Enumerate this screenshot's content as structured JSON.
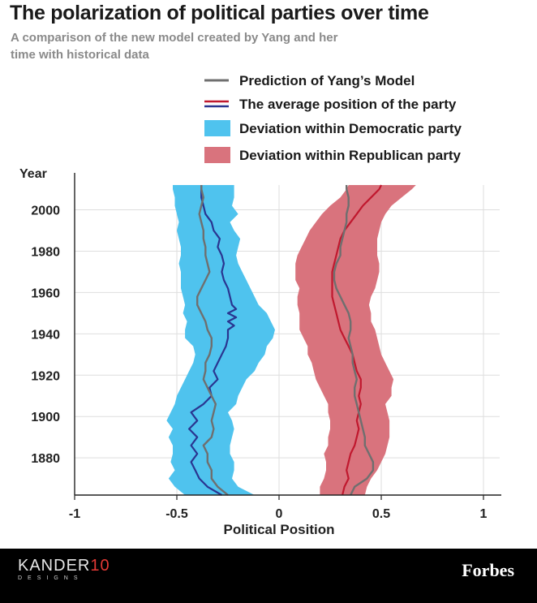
{
  "title": "The polarization of political parties over time",
  "subtitle": "A comparison of the new model created by Yang and her time with historical data",
  "footer": {
    "brand_left_name": "KANDER",
    "brand_left_num": "10",
    "brand_left_sub": "DESIGNS",
    "brand_right": "Forbes"
  },
  "colors": {
    "dem_band": "#4fc3ee",
    "rep_band": "#d9737d",
    "dem_line": "#2a3590",
    "rep_line": "#c0182e",
    "model_line": "#6f6f6f",
    "grid": "#dedede"
  },
  "chart_data": {
    "type": "area",
    "title": "The polarization of political parties over time",
    "xlabel": "Political Position",
    "ylabel": "Year",
    "xlim": [
      -1,
      1
    ],
    "ylim": [
      1862,
      2012
    ],
    "xticks": [
      "-1",
      "-0.5",
      "0",
      "0.5",
      "1"
    ],
    "xtick_values": [
      -1,
      -0.5,
      0,
      0.5,
      1
    ],
    "yticks": [
      "1880",
      "1900",
      "1920",
      "1940",
      "1960",
      "1980",
      "2000"
    ],
    "ytick_values": [
      1880,
      1900,
      1920,
      1940,
      1960,
      1980,
      2000
    ],
    "grid": true,
    "legend_position": "top-right",
    "legend": [
      {
        "label": "Prediction of Yang’s Model",
        "kind": "line-gray"
      },
      {
        "label": "The average position of the party",
        "kind": "line-pair"
      },
      {
        "label": "Deviation within Democratic party",
        "kind": "swatch-dem"
      },
      {
        "label": "Deviation within Republican party",
        "kind": "swatch-rep"
      }
    ],
    "series": [
      {
        "name": "Deviation within Democratic party",
        "type": "band",
        "year": [
          1862,
          1866,
          1870,
          1874,
          1878,
          1882,
          1886,
          1890,
          1894,
          1898,
          1902,
          1906,
          1910,
          1914,
          1918,
          1922,
          1926,
          1930,
          1934,
          1938,
          1942,
          1946,
          1950,
          1954,
          1958,
          1962,
          1966,
          1970,
          1974,
          1978,
          1982,
          1986,
          1990,
          1994,
          1998,
          2002,
          2006,
          2010,
          2012
        ],
        "low": [
          -0.46,
          -0.51,
          -0.54,
          -0.51,
          -0.53,
          -0.52,
          -0.52,
          -0.54,
          -0.52,
          -0.55,
          -0.53,
          -0.51,
          -0.5,
          -0.48,
          -0.46,
          -0.44,
          -0.42,
          -0.41,
          -0.42,
          -0.46,
          -0.46,
          -0.45,
          -0.47,
          -0.46,
          -0.47,
          -0.48,
          -0.48,
          -0.48,
          -0.49,
          -0.48,
          -0.48,
          -0.49,
          -0.5,
          -0.49,
          -0.5,
          -0.51,
          -0.51,
          -0.52,
          -0.52
        ],
        "high": [
          -0.12,
          -0.2,
          -0.23,
          -0.22,
          -0.22,
          -0.24,
          -0.24,
          -0.23,
          -0.22,
          -0.23,
          -0.25,
          -0.21,
          -0.2,
          -0.18,
          -0.16,
          -0.12,
          -0.1,
          -0.07,
          -0.06,
          -0.03,
          -0.02,
          -0.04,
          -0.06,
          -0.1,
          -0.12,
          -0.14,
          -0.16,
          -0.18,
          -0.2,
          -0.21,
          -0.2,
          -0.19,
          -0.22,
          -0.24,
          -0.2,
          -0.23,
          -0.22,
          -0.22,
          -0.22
        ]
      },
      {
        "name": "Deviation within Republican party",
        "type": "band",
        "year": [
          1862,
          1866,
          1870,
          1874,
          1878,
          1882,
          1886,
          1890,
          1894,
          1898,
          1902,
          1906,
          1910,
          1914,
          1918,
          1922,
          1926,
          1930,
          1934,
          1938,
          1942,
          1946,
          1950,
          1954,
          1958,
          1962,
          1966,
          1970,
          1974,
          1978,
          1982,
          1986,
          1990,
          1994,
          1998,
          2002,
          2006,
          2010,
          2012
        ],
        "low": [
          0.2,
          0.2,
          0.22,
          0.23,
          0.23,
          0.22,
          0.24,
          0.24,
          0.25,
          0.25,
          0.24,
          0.24,
          0.22,
          0.2,
          0.18,
          0.17,
          0.16,
          0.14,
          0.14,
          0.12,
          0.1,
          0.1,
          0.1,
          0.09,
          0.09,
          0.1,
          0.08,
          0.08,
          0.08,
          0.09,
          0.11,
          0.13,
          0.15,
          0.18,
          0.21,
          0.25,
          0.3,
          0.33,
          0.34
        ],
        "high": [
          0.42,
          0.43,
          0.45,
          0.48,
          0.5,
          0.52,
          0.53,
          0.54,
          0.54,
          0.54,
          0.53,
          0.52,
          0.55,
          0.55,
          0.56,
          0.54,
          0.52,
          0.5,
          0.49,
          0.48,
          0.47,
          0.45,
          0.45,
          0.44,
          0.45,
          0.47,
          0.48,
          0.49,
          0.49,
          0.48,
          0.48,
          0.48,
          0.49,
          0.5,
          0.52,
          0.55,
          0.6,
          0.65,
          0.67
        ]
      },
      {
        "name": "Democratic average position",
        "type": "line",
        "year": [
          1862,
          1866,
          1870,
          1874,
          1878,
          1882,
          1886,
          1890,
          1894,
          1898,
          1902,
          1906,
          1910,
          1914,
          1918,
          1922,
          1926,
          1930,
          1934,
          1938,
          1942,
          1944,
          1946,
          1948,
          1950,
          1952,
          1954,
          1958,
          1962,
          1966,
          1970,
          1974,
          1978,
          1982,
          1986,
          1990,
          1994,
          1998,
          2002,
          2006,
          2010,
          2012
        ],
        "x": [
          -0.28,
          -0.35,
          -0.39,
          -0.41,
          -0.43,
          -0.4,
          -0.43,
          -0.4,
          -0.44,
          -0.4,
          -0.43,
          -0.37,
          -0.33,
          -0.34,
          -0.3,
          -0.32,
          -0.3,
          -0.28,
          -0.26,
          -0.25,
          -0.25,
          -0.22,
          -0.25,
          -0.21,
          -0.25,
          -0.21,
          -0.23,
          -0.24,
          -0.25,
          -0.27,
          -0.28,
          -0.27,
          -0.28,
          -0.3,
          -0.29,
          -0.32,
          -0.33,
          -0.36,
          -0.37,
          -0.38,
          -0.38,
          -0.38
        ]
      },
      {
        "name": "Republican average position",
        "type": "line",
        "year": [
          1862,
          1866,
          1870,
          1874,
          1878,
          1882,
          1886,
          1890,
          1894,
          1898,
          1902,
          1906,
          1910,
          1914,
          1918,
          1922,
          1926,
          1930,
          1934,
          1938,
          1942,
          1946,
          1950,
          1954,
          1958,
          1962,
          1966,
          1970,
          1974,
          1978,
          1982,
          1986,
          1990,
          1994,
          1998,
          2002,
          2006,
          2010,
          2012
        ],
        "x": [
          0.31,
          0.32,
          0.34,
          0.33,
          0.34,
          0.35,
          0.37,
          0.38,
          0.39,
          0.38,
          0.39,
          0.4,
          0.39,
          0.4,
          0.4,
          0.38,
          0.37,
          0.36,
          0.34,
          0.32,
          0.3,
          0.29,
          0.28,
          0.27,
          0.26,
          0.26,
          0.26,
          0.26,
          0.27,
          0.28,
          0.29,
          0.3,
          0.32,
          0.35,
          0.38,
          0.41,
          0.45,
          0.49,
          0.5
        ]
      },
      {
        "name": "Prediction of Yang’s Model (Democratic)",
        "type": "line",
        "year": [
          1862,
          1866,
          1870,
          1874,
          1878,
          1882,
          1886,
          1890,
          1894,
          1898,
          1902,
          1906,
          1910,
          1914,
          1918,
          1922,
          1926,
          1930,
          1934,
          1938,
          1942,
          1946,
          1950,
          1954,
          1958,
          1962,
          1966,
          1970,
          1974,
          1978,
          1982,
          1986,
          1990,
          1994,
          1998,
          2002,
          2006,
          2010,
          2012
        ],
        "x": [
          -0.25,
          -0.3,
          -0.33,
          -0.33,
          -0.35,
          -0.35,
          -0.37,
          -0.33,
          -0.32,
          -0.33,
          -0.32,
          -0.31,
          -0.33,
          -0.35,
          -0.37,
          -0.36,
          -0.36,
          -0.34,
          -0.33,
          -0.33,
          -0.35,
          -0.36,
          -0.38,
          -0.4,
          -0.4,
          -0.38,
          -0.36,
          -0.34,
          -0.35,
          -0.36,
          -0.36,
          -0.37,
          -0.37,
          -0.38,
          -0.39,
          -0.38,
          -0.37,
          -0.38,
          -0.38
        ]
      },
      {
        "name": "Prediction of Yang’s Model (Republican)",
        "type": "line",
        "year": [
          1862,
          1866,
          1870,
          1874,
          1878,
          1882,
          1886,
          1890,
          1894,
          1898,
          1902,
          1906,
          1910,
          1914,
          1918,
          1922,
          1926,
          1930,
          1934,
          1938,
          1942,
          1946,
          1950,
          1954,
          1958,
          1962,
          1966,
          1970,
          1974,
          1978,
          1982,
          1986,
          1990,
          1994,
          1998,
          2002,
          2006,
          2010,
          2012
        ],
        "x": [
          0.35,
          0.37,
          0.43,
          0.46,
          0.46,
          0.44,
          0.42,
          0.42,
          0.41,
          0.4,
          0.39,
          0.38,
          0.37,
          0.37,
          0.38,
          0.37,
          0.36,
          0.36,
          0.35,
          0.34,
          0.35,
          0.35,
          0.34,
          0.32,
          0.3,
          0.28,
          0.27,
          0.27,
          0.28,
          0.3,
          0.3,
          0.31,
          0.32,
          0.33,
          0.33,
          0.34,
          0.34,
          0.33,
          0.33
        ]
      }
    ]
  }
}
